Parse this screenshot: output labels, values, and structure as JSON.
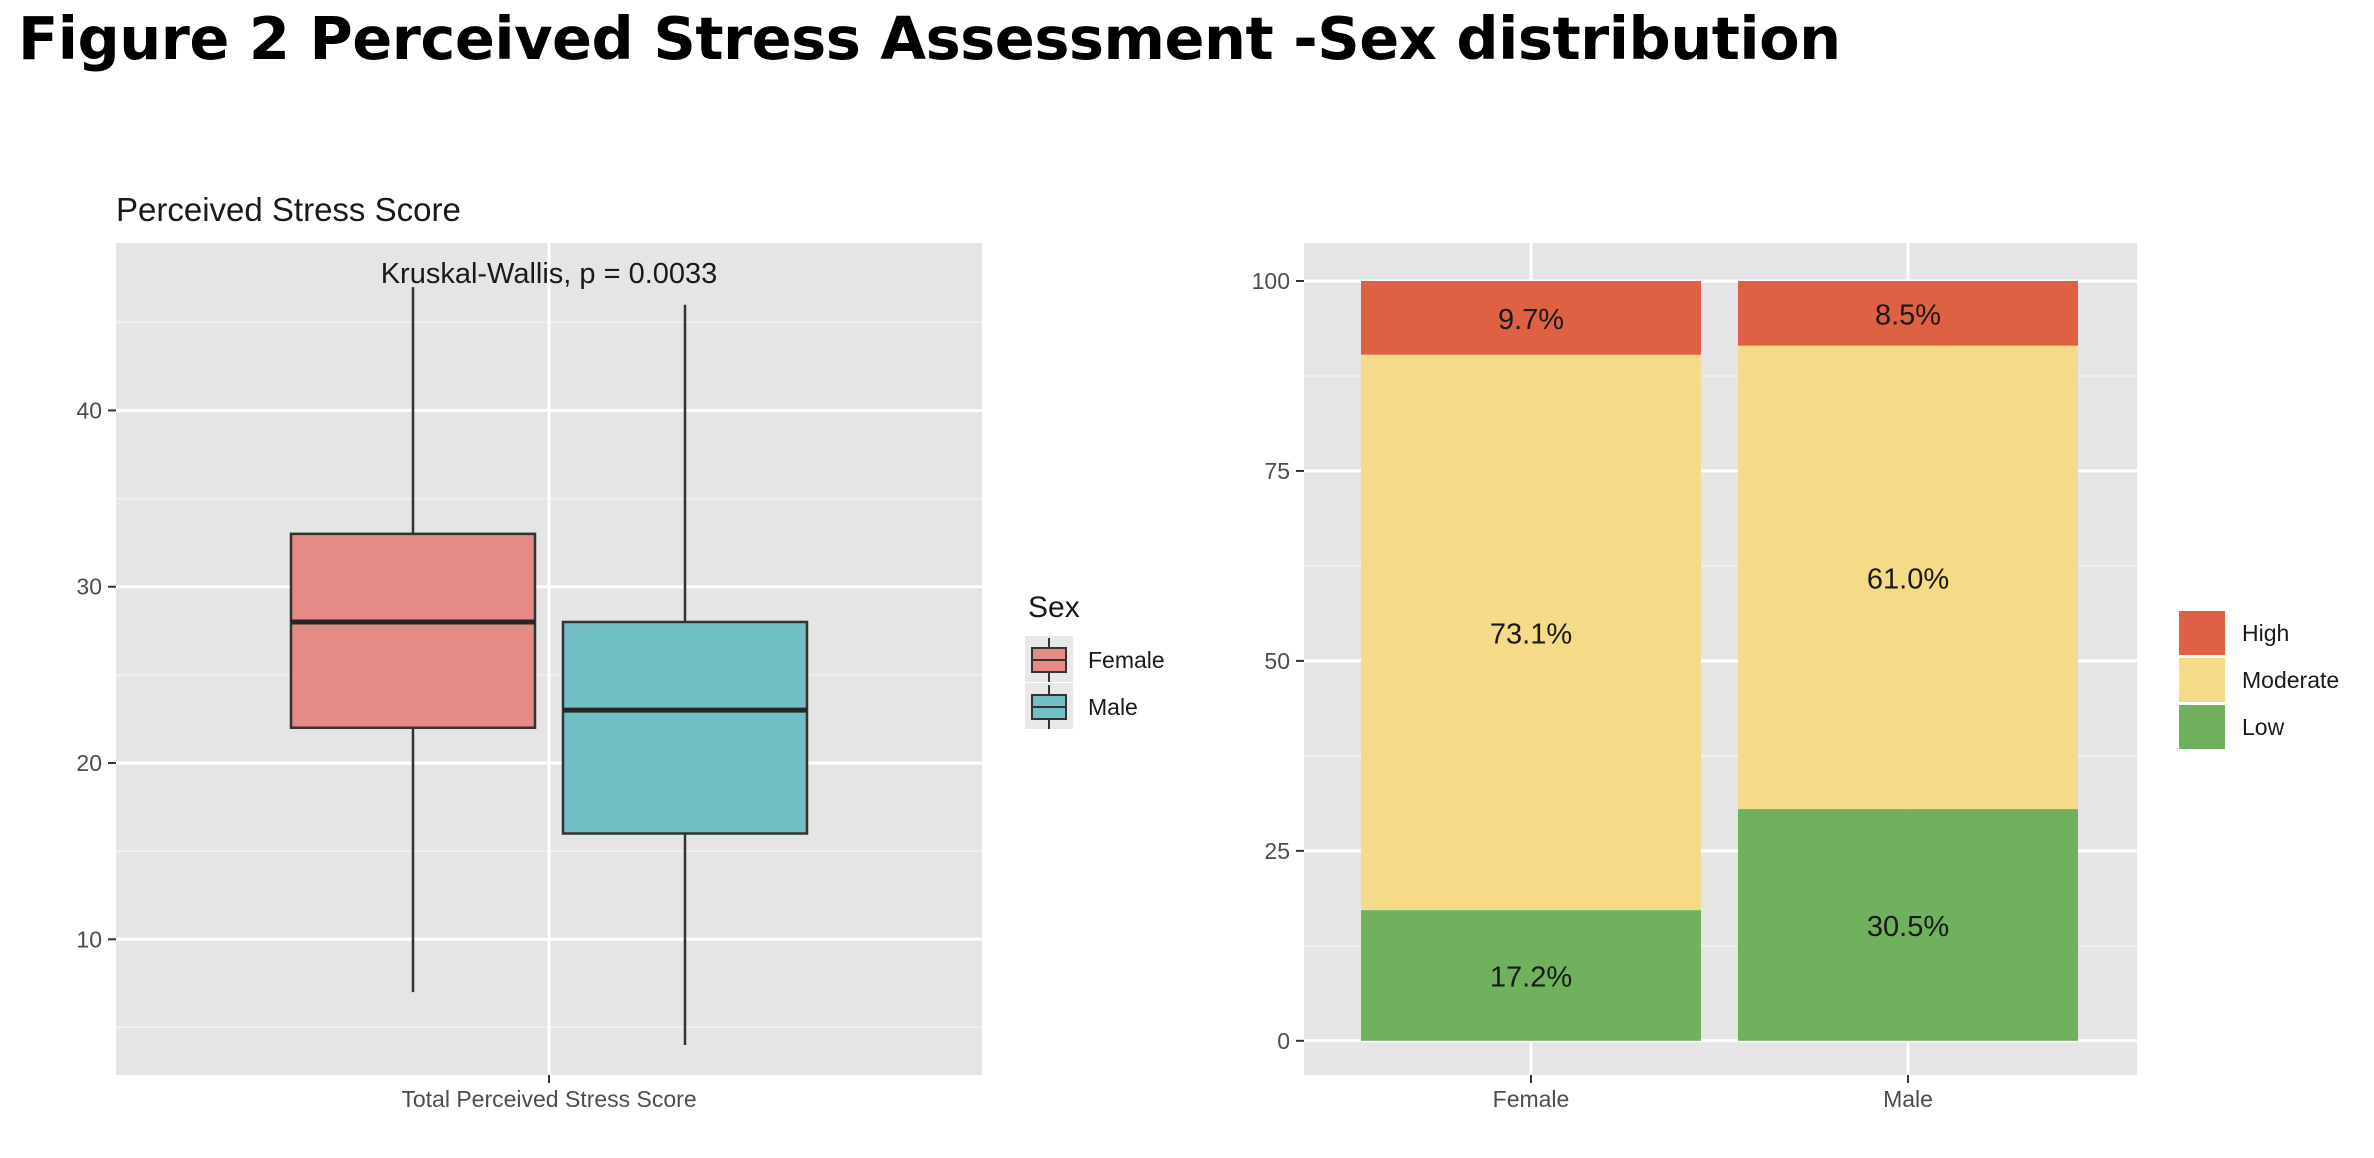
{
  "figure_title": "Figure 2 Perceived Stress Assessment -Sex distribution",
  "chart_data": [
    {
      "type": "box",
      "title": "Perceived Stress Score",
      "annotation": "Kruskal-Wallis, p = 0.0033",
      "xlabel": "Total Perceived Stress Score",
      "ylabel": "",
      "ylim": [
        2.3,
        49.5
      ],
      "y_ticks": [
        10,
        20,
        30,
        40
      ],
      "legend": {
        "title": "Sex",
        "position": "right",
        "entries": [
          {
            "label": "Female",
            "color": "#E58A85"
          },
          {
            "label": "Male",
            "color": "#72C0C5"
          }
        ]
      },
      "series": [
        {
          "name": "Female",
          "min": 7,
          "q1": 22,
          "median": 28,
          "q3": 33,
          "max": 47,
          "color": "#E58A85"
        },
        {
          "name": "Male",
          "min": 4,
          "q1": 16,
          "median": 23,
          "q3": 28,
          "max": 46,
          "color": "#72C0C5"
        }
      ]
    },
    {
      "type": "stacked_bar",
      "title": "",
      "xlabel": "",
      "ylabel": "",
      "categories": [
        "Female",
        "Male"
      ],
      "ylim": [
        -4.5,
        105
      ],
      "y_ticks": [
        0,
        25,
        50,
        75,
        100
      ],
      "legend": {
        "title": "",
        "position": "right",
        "order": [
          "High",
          "Moderate",
          "Low"
        ]
      },
      "series": [
        {
          "name": "Low",
          "values": [
            17.2,
            30.5
          ],
          "labels": [
            "17.2%",
            "30.5%"
          ],
          "color": "#6FB15C"
        },
        {
          "name": "Moderate",
          "values": [
            73.1,
            61.0
          ],
          "labels": [
            "73.1%",
            "61.0%"
          ],
          "color": "#F5DA87"
        },
        {
          "name": "High",
          "values": [
            9.7,
            8.5
          ],
          "labels": [
            "9.7%",
            "8.5%"
          ],
          "color": "#DE6144"
        }
      ]
    }
  ]
}
